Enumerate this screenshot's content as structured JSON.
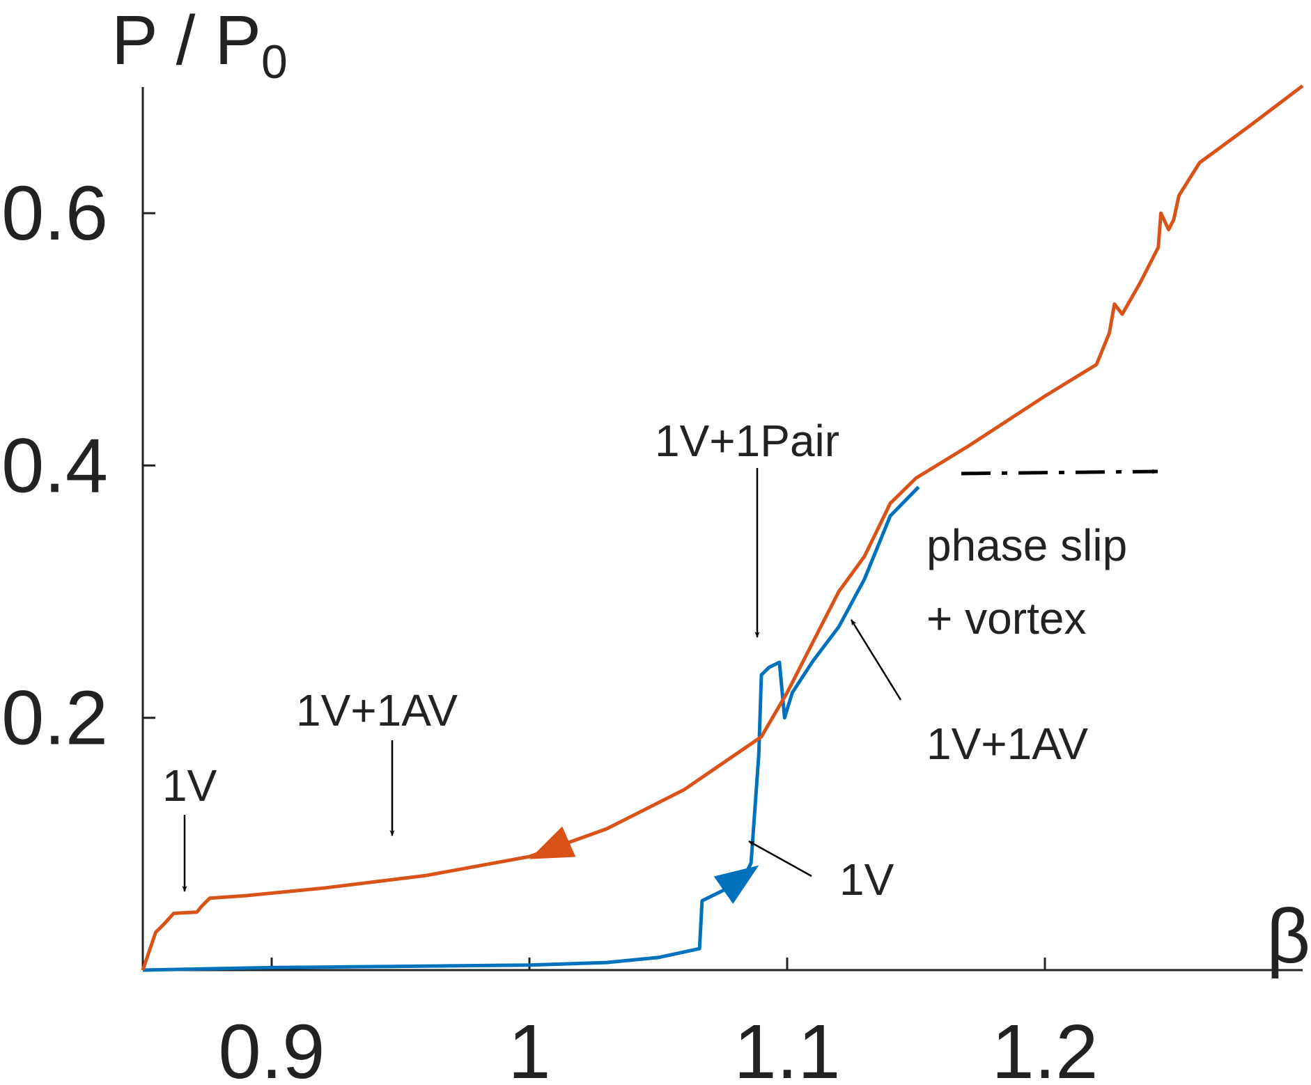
{
  "chart_data": {
    "type": "line",
    "ylabel_main": "P / P",
    "ylabel_sub": "0",
    "xlabel": "β",
    "xlim": [
      0.85,
      1.3
    ],
    "ylim": [
      0,
      0.7
    ],
    "xticks": [
      0.9,
      1.0,
      1.1,
      1.2
    ],
    "xtick_labels": [
      "0.9",
      "1",
      "1.1",
      "1.2"
    ],
    "yticks": [
      0.2,
      0.4,
      0.6
    ],
    "ytick_labels": [
      "0.2",
      "0.4",
      "0.6"
    ],
    "grid": false,
    "series": [
      {
        "color": "#0072BD",
        "direction": "increasing",
        "points": [
          [
            0.85,
            0.0
          ],
          [
            0.9,
            0.002
          ],
          [
            0.95,
            0.003
          ],
          [
            1.0,
            0.004
          ],
          [
            1.03,
            0.006
          ],
          [
            1.05,
            0.01
          ],
          [
            1.066,
            0.017
          ],
          [
            1.067,
            0.055
          ],
          [
            1.075,
            0.063
          ],
          [
            1.083,
            0.072
          ],
          [
            1.086,
            0.085
          ],
          [
            1.089,
            0.171
          ],
          [
            1.09,
            0.234
          ],
          [
            1.093,
            0.24
          ],
          [
            1.097,
            0.244
          ],
          [
            1.099,
            0.2
          ],
          [
            1.102,
            0.22
          ],
          [
            1.11,
            0.245
          ],
          [
            1.12,
            0.272
          ],
          [
            1.13,
            0.31
          ],
          [
            1.14,
            0.36
          ],
          [
            1.151,
            0.383
          ]
        ]
      },
      {
        "color": "#D95319",
        "direction": "decreasing",
        "points": [
          [
            1.3,
            0.701
          ],
          [
            1.28,
            0.67
          ],
          [
            1.26,
            0.64
          ],
          [
            1.252,
            0.614
          ],
          [
            1.25,
            0.595
          ],
          [
            1.248,
            0.587
          ],
          [
            1.245,
            0.6
          ],
          [
            1.244,
            0.573
          ],
          [
            1.237,
            0.545
          ],
          [
            1.23,
            0.52
          ],
          [
            1.227,
            0.528
          ],
          [
            1.225,
            0.505
          ],
          [
            1.22,
            0.48
          ],
          [
            1.2,
            0.455
          ],
          [
            1.17,
            0.415
          ],
          [
            1.15,
            0.39
          ],
          [
            1.14,
            0.37
          ],
          [
            1.13,
            0.328
          ],
          [
            1.12,
            0.3
          ],
          [
            1.11,
            0.26
          ],
          [
            1.1,
            0.22
          ],
          [
            1.09,
            0.185
          ],
          [
            1.06,
            0.143
          ],
          [
            1.03,
            0.112
          ],
          [
            1.0,
            0.09
          ],
          [
            0.96,
            0.075
          ],
          [
            0.92,
            0.065
          ],
          [
            0.89,
            0.059
          ],
          [
            0.876,
            0.057
          ],
          [
            0.873,
            0.051
          ],
          [
            0.871,
            0.046
          ],
          [
            0.862,
            0.045
          ],
          [
            0.858,
            0.036
          ],
          [
            0.855,
            0.03
          ],
          [
            0.85,
            0.0
          ]
        ]
      }
    ],
    "annotations": [
      "1V+1Pair",
      "1V+1AV",
      "1V",
      "1V+1AV",
      "1V",
      "phase slip",
      "+ vortex"
    ]
  }
}
